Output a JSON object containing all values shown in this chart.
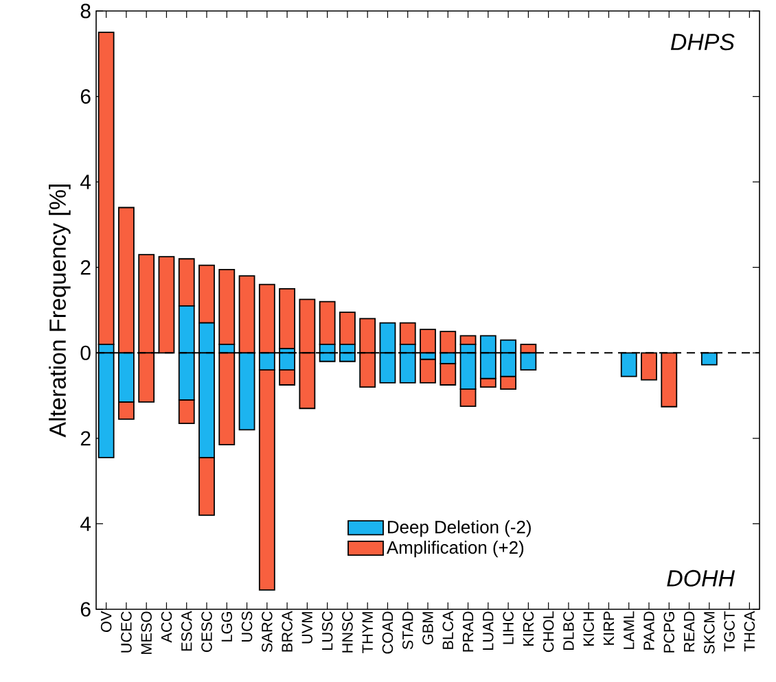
{
  "chart_data": {
    "type": "bar",
    "stacked": true,
    "ylabel": "Alteration Frequency [%]",
    "categories": [
      "OV",
      "UCEC",
      "MESO",
      "ACC",
      "ESCA",
      "CESC",
      "LGG",
      "UCS",
      "SARC",
      "BRCA",
      "UVM",
      "LUSC",
      "HNSC",
      "THYM",
      "COAD",
      "STAD",
      "GBM",
      "BLCA",
      "PRAD",
      "LUAD",
      "LIHC",
      "KIRC",
      "CHOL",
      "DLBC",
      "KICH",
      "KIRP",
      "LAML",
      "PAAD",
      "PCPG",
      "READ",
      "SKCM",
      "TGCT",
      "THCA"
    ],
    "series": [
      {
        "name": "Deep Deletion (-2)",
        "color": "#1cb4f0",
        "values": [
          0.2,
          0,
          0,
          0,
          1.1,
          0.7,
          0.2,
          0,
          0,
          0.1,
          0,
          0.2,
          0.2,
          0,
          0.7,
          0.2,
          0,
          0,
          0.2,
          0.4,
          0.3,
          0,
          0,
          0,
          0,
          0,
          0,
          0,
          0,
          0,
          0,
          0,
          0
        ]
      },
      {
        "name": "Amplification (+2)",
        "color": "#f8603f",
        "values": [
          7.3,
          3.4,
          2.3,
          2.25,
          1.1,
          1.35,
          1.75,
          1.8,
          1.6,
          1.4,
          1.25,
          1.0,
          0.75,
          0.8,
          0,
          0.5,
          0.55,
          0.5,
          0.2,
          0,
          0,
          0.2,
          0,
          0,
          0,
          0,
          0,
          0,
          0,
          0,
          0,
          0,
          0
        ]
      },
      {
        "color": "#1cb4f0",
        "values": [
          -2.45,
          -1.15,
          0,
          0,
          -1.1,
          -2.45,
          0,
          -1.8,
          -0.4,
          -0.4,
          0,
          -0.2,
          -0.2,
          0,
          -0.7,
          -0.7,
          -0.15,
          -0.25,
          -0.85,
          -0.6,
          -0.55,
          -0.4,
          0,
          0,
          0,
          0,
          -0.55,
          0,
          0,
          0,
          -0.28,
          0,
          0
        ]
      },
      {
        "color": "#f8603f",
        "values": [
          0,
          -0.4,
          -1.15,
          0,
          -0.55,
          -1.35,
          -2.15,
          0,
          -5.15,
          -0.35,
          -1.3,
          0,
          0,
          -0.8,
          0,
          0,
          -0.55,
          -0.5,
          -0.4,
          -0.2,
          -0.3,
          0,
          0,
          0,
          0,
          0,
          0,
          -0.63,
          -1.26,
          0,
          0,
          0,
          0
        ]
      }
    ],
    "ylim": [
      -6,
      8
    ],
    "yticks": [
      {
        "value": -6,
        "label": "6"
      },
      {
        "value": -4,
        "label": "4"
      },
      {
        "value": -2,
        "label": "2"
      },
      0,
      2,
      4,
      6,
      8
    ],
    "ref_lines": [
      {
        "axis": "y",
        "value": 0,
        "color": "#000000",
        "line_style": "dashed"
      }
    ],
    "legend": "bottom",
    "annotations": [
      "DHPS",
      "DOHH"
    ]
  }
}
